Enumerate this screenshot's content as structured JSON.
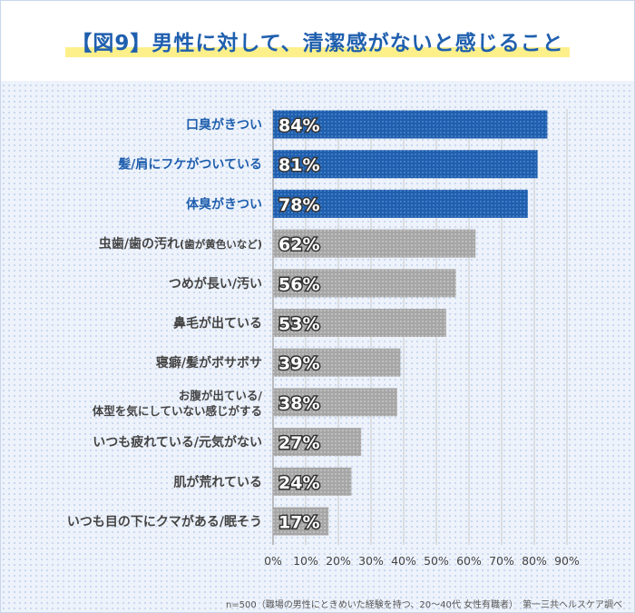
{
  "title": "【図9】男性に対して、清潔感がないと感じること",
  "footnote": "n=500（職場の男性にときめいた経験を持つ、20～40代 女性有職者）　第一三共ヘルスケア調べ",
  "colors": {
    "highlight_bar": "#1f5fae",
    "normal_bar": "#a9a9a9",
    "highlight_label": "#1f5fae",
    "normal_label": "#444444",
    "title": "#1f5fae",
    "title_marker": "#fdf08a"
  },
  "chart_data": {
    "type": "bar",
    "orientation": "horizontal",
    "categories": [
      "口臭がきつい",
      "髪/肩にフケがついている",
      "体臭がきつい",
      "虫歯/歯の汚れ(歯が黄色いなど)",
      "つめが長い/汚い",
      "鼻毛が出ている",
      "寝癖/髪がボサボサ",
      "お腹が出ている/体型を気にしていない感じがする",
      "いつも疲れている/元気がない",
      "肌が荒れている",
      "いつも目の下にクマがある/眠そう"
    ],
    "values": [
      84,
      81,
      78,
      62,
      56,
      53,
      39,
      38,
      27,
      24,
      17
    ],
    "value_labels": [
      "84%",
      "81%",
      "78%",
      "62%",
      "56%",
      "53%",
      "39%",
      "38%",
      "27%",
      "24%",
      "17%"
    ],
    "highlighted": [
      true,
      true,
      true,
      false,
      false,
      false,
      false,
      false,
      false,
      false,
      false
    ],
    "xlim": [
      0,
      90
    ],
    "xticks": [
      "0%",
      "10%",
      "20%",
      "30%",
      "40%",
      "50%",
      "60%",
      "70%",
      "80%",
      "90%"
    ],
    "grid": true,
    "legend": "none"
  }
}
